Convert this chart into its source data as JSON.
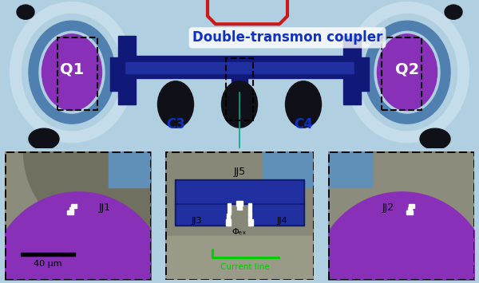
{
  "label_coupler": "Double-transmon coupler",
  "label_Q1": "Q1",
  "label_Q2": "Q2",
  "label_C3": "C3",
  "label_C4": "C4",
  "label_JJ1": "JJ1",
  "label_JJ2": "JJ2",
  "label_JJ3": "JJ3",
  "label_JJ4": "JJ4",
  "label_JJ5": "JJ5",
  "label_phi": "Φₑₓ",
  "label_scalebar": "40 μm",
  "label_currentline": "Current line",
  "colors": {
    "light_blue_bg": "#b0cfe0",
    "medium_blue": "#7aaac8",
    "blue_ring": "#5080b0",
    "dark_blue": "#2030a0",
    "darker_blue": "#101878",
    "purple": "#8830b8",
    "white": "#ffffff",
    "red": "#cc1818",
    "green": "#00cc00",
    "gray_panel": "#909080",
    "gray_dark": "#6a6a5a",
    "gray_light": "#b0b0a0",
    "black": "#000000",
    "near_black": "#101018",
    "label_blue": "#1030c0"
  }
}
